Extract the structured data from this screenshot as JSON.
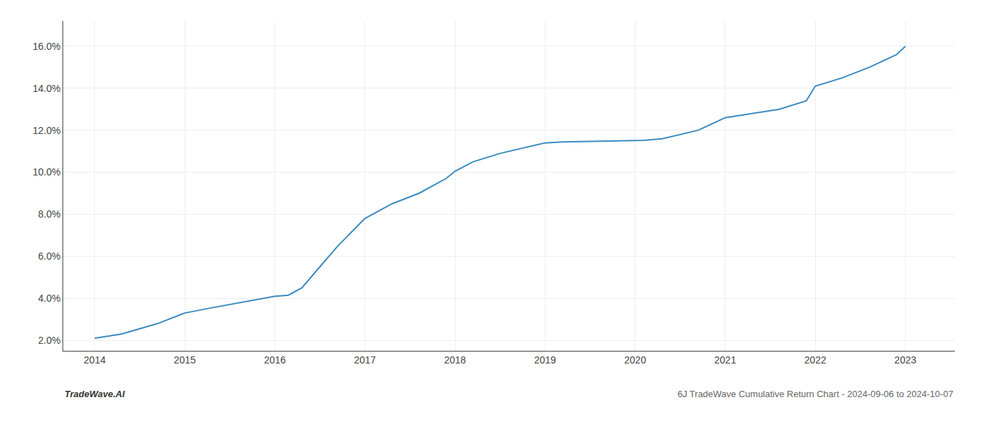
{
  "chart_data": {
    "type": "line",
    "x": [
      2014.0,
      2014.3,
      2014.7,
      2015.0,
      2015.3,
      2015.7,
      2016.0,
      2016.15,
      2016.3,
      2016.5,
      2016.7,
      2017.0,
      2017.3,
      2017.6,
      2017.9,
      2018.0,
      2018.2,
      2018.5,
      2018.7,
      2019.0,
      2019.2,
      2019.5,
      2019.7,
      2020.0,
      2020.1,
      2020.3,
      2020.5,
      2020.7,
      2021.0,
      2021.3,
      2021.6,
      2021.9,
      2022.0,
      2022.3,
      2022.6,
      2022.9,
      2023.0
    ],
    "values": [
      2.1,
      2.3,
      2.8,
      3.3,
      3.55,
      3.85,
      4.1,
      4.15,
      4.5,
      5.5,
      6.5,
      7.8,
      8.5,
      9.0,
      9.7,
      10.05,
      10.5,
      10.9,
      11.1,
      11.4,
      11.45,
      11.47,
      11.48,
      11.5,
      11.52,
      11.6,
      11.8,
      12.0,
      12.6,
      12.8,
      13.0,
      13.4,
      14.1,
      14.5,
      15.0,
      15.6,
      16.0
    ],
    "color": "#3a8abf",
    "xlim": [
      2013.65,
      2023.55
    ],
    "xticks": [
      2014,
      2015,
      2016,
      2017,
      2018,
      2019,
      2020,
      2021,
      2022,
      2023
    ],
    "ylim": [
      1.5,
      17.2
    ],
    "yticks": [
      {
        "value": 2.0,
        "label": "2.0%"
      },
      {
        "value": 4.0,
        "label": "4.0%"
      },
      {
        "value": 6.0,
        "label": "6.0%"
      },
      {
        "value": 8.0,
        "label": "8.0%"
      },
      {
        "value": 10.0,
        "label": "10.0%"
      },
      {
        "value": 12.0,
        "label": "12.0%"
      },
      {
        "value": 14.0,
        "label": "14.0%"
      },
      {
        "value": 16.0,
        "label": "16.0%"
      }
    ],
    "grid": true,
    "annotations": [
      "TradeWave.AI",
      "6J TradeWave Cumulative Return Chart - 2024-09-06 to 2024-10-07"
    ]
  }
}
